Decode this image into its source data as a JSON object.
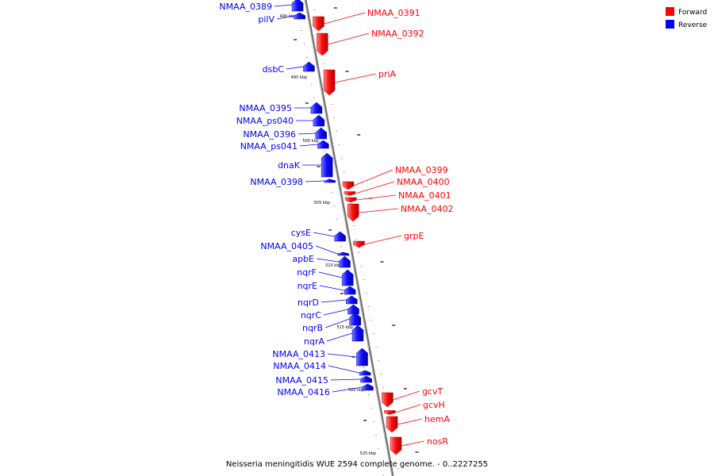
{
  "caption": "Neisseria meningitidis WUE 2594 complete genome. - 0..2227255",
  "legend": [
    {
      "label": "Forward",
      "color": "#ff0000"
    },
    {
      "label": "Reverse",
      "color": "#0000ff"
    }
  ],
  "colors": {
    "forward": "#ff0000",
    "reverse": "#0000ff",
    "backbone": "#808080"
  },
  "ticks": [
    "490 kbp",
    "495 kbp",
    "500 kbp",
    "505 kbp",
    "510 kbp",
    "515 kbp",
    "520 kbp",
    "525 kbp"
  ],
  "genes": [
    {
      "name": "NMAA_0389",
      "strand": "reverse"
    },
    {
      "name": "pilV",
      "strand": "reverse"
    },
    {
      "name": "NMAA_0391",
      "strand": "forward"
    },
    {
      "name": "NMAA_0392",
      "strand": "forward"
    },
    {
      "name": "dsbC",
      "strand": "reverse"
    },
    {
      "name": "priA",
      "strand": "forward"
    },
    {
      "name": "NMAA_0395",
      "strand": "reverse"
    },
    {
      "name": "NMAA_ps040",
      "strand": "reverse"
    },
    {
      "name": "NMAA_0396",
      "strand": "reverse"
    },
    {
      "name": "NMAA_ps041",
      "strand": "reverse"
    },
    {
      "name": "dnaK",
      "strand": "reverse"
    },
    {
      "name": "NMAA_0398",
      "strand": "reverse"
    },
    {
      "name": "NMAA_0399",
      "strand": "forward"
    },
    {
      "name": "NMAA_0400",
      "strand": "forward"
    },
    {
      "name": "NMAA_0401",
      "strand": "forward"
    },
    {
      "name": "NMAA_0402",
      "strand": "forward"
    },
    {
      "name": "grpE",
      "strand": "forward"
    },
    {
      "name": "cysE",
      "strand": "reverse"
    },
    {
      "name": "NMAA_0405",
      "strand": "reverse"
    },
    {
      "name": "apbE",
      "strand": "reverse"
    },
    {
      "name": "nqrF",
      "strand": "reverse"
    },
    {
      "name": "nqrE",
      "strand": "reverse"
    },
    {
      "name": "nqrD",
      "strand": "reverse"
    },
    {
      "name": "nqrC",
      "strand": "reverse"
    },
    {
      "name": "nqrB",
      "strand": "reverse"
    },
    {
      "name": "nqrA",
      "strand": "reverse"
    },
    {
      "name": "NMAA_0413",
      "strand": "reverse"
    },
    {
      "name": "NMAA_0414",
      "strand": "reverse"
    },
    {
      "name": "NMAA_0415",
      "strand": "reverse"
    },
    {
      "name": "NMAA_0416",
      "strand": "reverse"
    },
    {
      "name": "gcvT",
      "strand": "forward"
    },
    {
      "name": "gcvH",
      "strand": "forward"
    },
    {
      "name": "hemA",
      "strand": "forward"
    },
    {
      "name": "nosR",
      "strand": "forward"
    }
  ]
}
